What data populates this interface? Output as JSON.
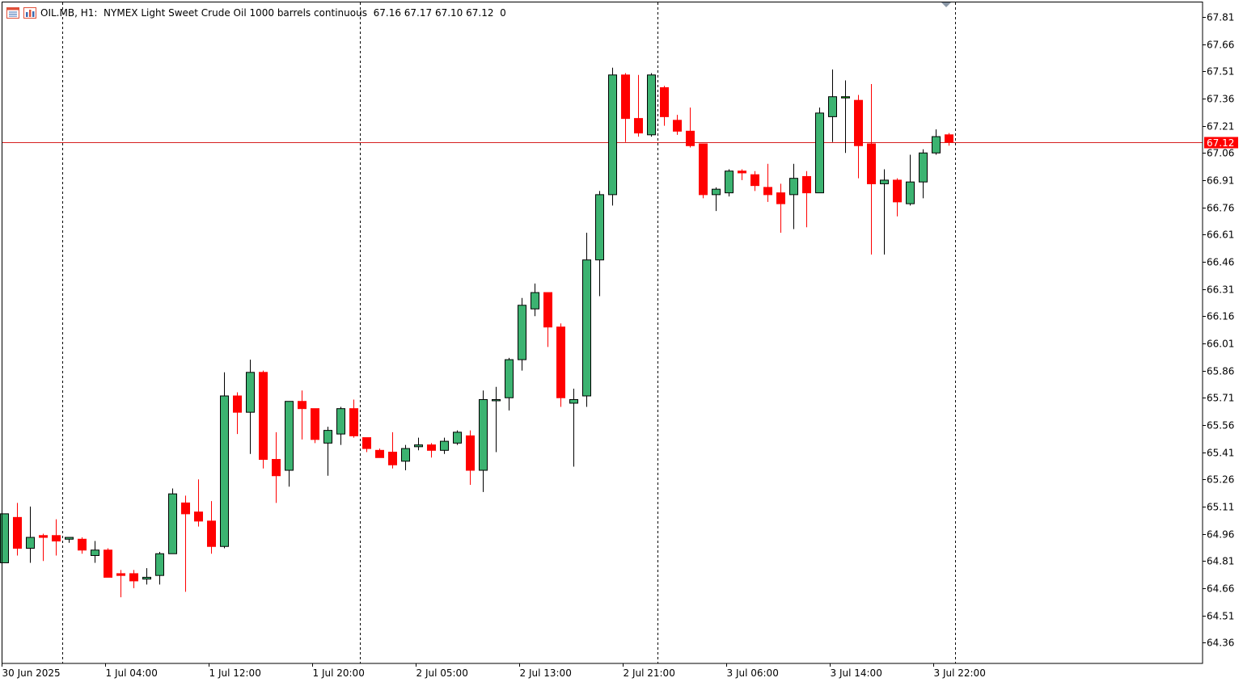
{
  "header": {
    "symbol_timeframe": "OIL.MB, H1:",
    "description": "NYMEX Light Sweet Crude Oil 1000 barrels continuous",
    "ohlc": "67.16 67.17 67.10 67.12",
    "volume": "0",
    "icons": [
      "menu-list-icon",
      "bar-chart-icon"
    ]
  },
  "current_price_label": "67.12",
  "colors": {
    "bull": "#3cb371",
    "bear": "#ff0000",
    "doji": "#00cc00",
    "price_line": "#d62020",
    "grid_separator": "#000000",
    "axis": "#000000",
    "background": "#ffffff"
  },
  "chart_data": {
    "type": "candlestick",
    "y_ticks": [
      "67.81",
      "67.66",
      "67.51",
      "67.36",
      "67.21",
      "67.06",
      "66.91",
      "66.76",
      "66.61",
      "66.46",
      "66.31",
      "66.16",
      "66.01",
      "65.86",
      "65.71",
      "65.56",
      "65.41",
      "65.26",
      "65.11",
      "64.96",
      "64.81",
      "64.66",
      "64.51",
      "64.36"
    ],
    "x_ticks": [
      "30 Jun 2025",
      "1 Jul 04:00",
      "1 Jul 12:00",
      "1 Jul 20:00",
      "2 Jul 05:00",
      "2 Jul 13:00",
      "2 Jul 21:00",
      "3 Jul 06:00",
      "3 Jul 14:00",
      "3 Jul 22:00"
    ],
    "ylim": [
      64.245,
      67.89
    ],
    "current_price": 67.12,
    "day_separators_after_candle_index": [
      4,
      27,
      50,
      73
    ],
    "candles": [
      {
        "o": 64.8,
        "h": 65.07,
        "l": 64.8,
        "c": 65.07
      },
      {
        "o": 65.05,
        "h": 65.13,
        "l": 64.84,
        "c": 64.88
      },
      {
        "o": 64.88,
        "h": 65.11,
        "l": 64.8,
        "c": 64.94
      },
      {
        "o": 64.95,
        "h": 64.96,
        "l": 64.81,
        "c": 64.94
      },
      {
        "o": 64.95,
        "h": 65.04,
        "l": 64.84,
        "c": 64.92
      },
      {
        "o": 64.93,
        "h": 64.94,
        "l": 64.91,
        "c": 64.94
      },
      {
        "o": 64.93,
        "h": 64.94,
        "l": 64.85,
        "c": 64.87
      },
      {
        "o": 64.84,
        "h": 64.92,
        "l": 64.8,
        "c": 64.87
      },
      {
        "o": 64.87,
        "h": 64.88,
        "l": 64.72,
        "c": 64.72
      },
      {
        "o": 64.74,
        "h": 64.76,
        "l": 64.61,
        "c": 64.73
      },
      {
        "o": 64.74,
        "h": 64.76,
        "l": 64.66,
        "c": 64.7
      },
      {
        "o": 64.71,
        "h": 64.77,
        "l": 64.68,
        "c": 64.72
      },
      {
        "o": 64.73,
        "h": 64.86,
        "l": 64.68,
        "c": 64.85
      },
      {
        "o": 64.85,
        "h": 65.21,
        "l": 64.85,
        "c": 65.18
      },
      {
        "o": 65.13,
        "h": 65.17,
        "l": 64.64,
        "c": 65.07
      },
      {
        "o": 65.08,
        "h": 65.26,
        "l": 65.0,
        "c": 65.03
      },
      {
        "o": 65.03,
        "h": 65.14,
        "l": 64.85,
        "c": 64.89
      },
      {
        "o": 64.89,
        "h": 65.85,
        "l": 64.88,
        "c": 65.72
      },
      {
        "o": 65.72,
        "h": 65.74,
        "l": 65.51,
        "c": 65.63
      },
      {
        "o": 65.63,
        "h": 65.92,
        "l": 65.4,
        "c": 65.85
      },
      {
        "o": 65.85,
        "h": 65.86,
        "l": 65.32,
        "c": 65.37
      },
      {
        "o": 65.37,
        "h": 65.52,
        "l": 65.13,
        "c": 65.28
      },
      {
        "o": 65.31,
        "h": 65.69,
        "l": 65.22,
        "c": 65.69
      },
      {
        "o": 65.69,
        "h": 65.75,
        "l": 65.48,
        "c": 65.65
      },
      {
        "o": 65.65,
        "h": 65.65,
        "l": 65.46,
        "c": 65.48
      },
      {
        "o": 65.46,
        "h": 65.55,
        "l": 65.28,
        "c": 65.53
      },
      {
        "o": 65.51,
        "h": 65.66,
        "l": 65.45,
        "c": 65.65
      },
      {
        "o": 65.65,
        "h": 65.7,
        "l": 65.49,
        "c": 65.5
      },
      {
        "o": 65.49,
        "h": 65.49,
        "l": 65.41,
        "c": 65.43
      },
      {
        "o": 65.42,
        "h": 65.43,
        "l": 65.38,
        "c": 65.38
      },
      {
        "o": 65.41,
        "h": 65.52,
        "l": 65.32,
        "c": 65.34
      },
      {
        "o": 65.36,
        "h": 65.45,
        "l": 65.31,
        "c": 65.43
      },
      {
        "o": 65.44,
        "h": 65.49,
        "l": 65.42,
        "c": 65.45
      },
      {
        "o": 65.45,
        "h": 65.46,
        "l": 65.38,
        "c": 65.42
      },
      {
        "o": 65.42,
        "h": 65.49,
        "l": 65.4,
        "c": 65.47
      },
      {
        "o": 65.46,
        "h": 65.53,
        "l": 65.45,
        "c": 65.52
      },
      {
        "o": 65.5,
        "h": 65.53,
        "l": 65.23,
        "c": 65.31
      },
      {
        "o": 65.31,
        "h": 65.75,
        "l": 65.19,
        "c": 65.7
      },
      {
        "o": 65.7,
        "h": 65.77,
        "l": 65.41,
        "c": 65.7
      },
      {
        "o": 65.71,
        "h": 65.93,
        "l": 65.64,
        "c": 65.92
      },
      {
        "o": 65.92,
        "h": 66.26,
        "l": 65.86,
        "c": 66.22
      },
      {
        "o": 66.2,
        "h": 66.34,
        "l": 66.16,
        "c": 66.29
      },
      {
        "o": 66.29,
        "h": 66.29,
        "l": 65.99,
        "c": 66.1
      },
      {
        "o": 66.1,
        "h": 66.12,
        "l": 65.66,
        "c": 65.71
      },
      {
        "o": 65.68,
        "h": 65.76,
        "l": 65.33,
        "c": 65.7
      },
      {
        "o": 65.72,
        "h": 66.62,
        "l": 65.66,
        "c": 66.47
      },
      {
        "o": 66.47,
        "h": 66.85,
        "l": 66.27,
        "c": 66.83
      },
      {
        "o": 66.83,
        "h": 67.53,
        "l": 66.77,
        "c": 67.49
      },
      {
        "o": 67.49,
        "h": 67.5,
        "l": 67.12,
        "c": 67.25
      },
      {
        "o": 67.25,
        "h": 67.49,
        "l": 67.15,
        "c": 67.17
      },
      {
        "o": 67.16,
        "h": 67.5,
        "l": 67.15,
        "c": 67.49
      },
      {
        "o": 67.42,
        "h": 67.43,
        "l": 67.21,
        "c": 67.26
      },
      {
        "o": 67.24,
        "h": 67.27,
        "l": 67.16,
        "c": 67.18
      },
      {
        "o": 67.18,
        "h": 67.31,
        "l": 67.09,
        "c": 67.1
      },
      {
        "o": 67.11,
        "h": 67.11,
        "l": 66.81,
        "c": 66.83
      },
      {
        "o": 66.83,
        "h": 66.87,
        "l": 66.74,
        "c": 66.86
      },
      {
        "o": 66.84,
        "h": 66.97,
        "l": 66.82,
        "c": 66.96
      },
      {
        "o": 66.96,
        "h": 66.97,
        "l": 66.91,
        "c": 66.95
      },
      {
        "o": 66.94,
        "h": 66.96,
        "l": 66.85,
        "c": 66.88
      },
      {
        "o": 66.87,
        "h": 67.0,
        "l": 66.79,
        "c": 66.83
      },
      {
        "o": 66.84,
        "h": 66.89,
        "l": 66.62,
        "c": 66.78
      },
      {
        "o": 66.83,
        "h": 67.0,
        "l": 66.64,
        "c": 66.92
      },
      {
        "o": 66.93,
        "h": 66.96,
        "l": 66.65,
        "c": 66.84
      },
      {
        "o": 66.84,
        "h": 67.31,
        "l": 66.84,
        "c": 67.28
      },
      {
        "o": 67.26,
        "h": 67.52,
        "l": 67.12,
        "c": 67.37
      },
      {
        "o": 67.37,
        "h": 67.46,
        "l": 67.06,
        "c": 67.37
      },
      {
        "o": 67.35,
        "h": 67.38,
        "l": 66.92,
        "c": 67.1
      },
      {
        "o": 67.11,
        "h": 67.44,
        "l": 66.5,
        "c": 66.89
      },
      {
        "o": 66.89,
        "h": 66.97,
        "l": 66.5,
        "c": 66.91
      },
      {
        "o": 66.91,
        "h": 66.92,
        "l": 66.71,
        "c": 66.79
      },
      {
        "o": 66.78,
        "h": 67.05,
        "l": 66.77,
        "c": 66.9
      },
      {
        "o": 66.9,
        "h": 67.08,
        "l": 66.81,
        "c": 67.06
      },
      {
        "o": 67.06,
        "h": 67.19,
        "l": 67.05,
        "c": 67.15
      },
      {
        "o": 67.16,
        "h": 67.17,
        "l": 67.1,
        "c": 67.12
      }
    ]
  }
}
